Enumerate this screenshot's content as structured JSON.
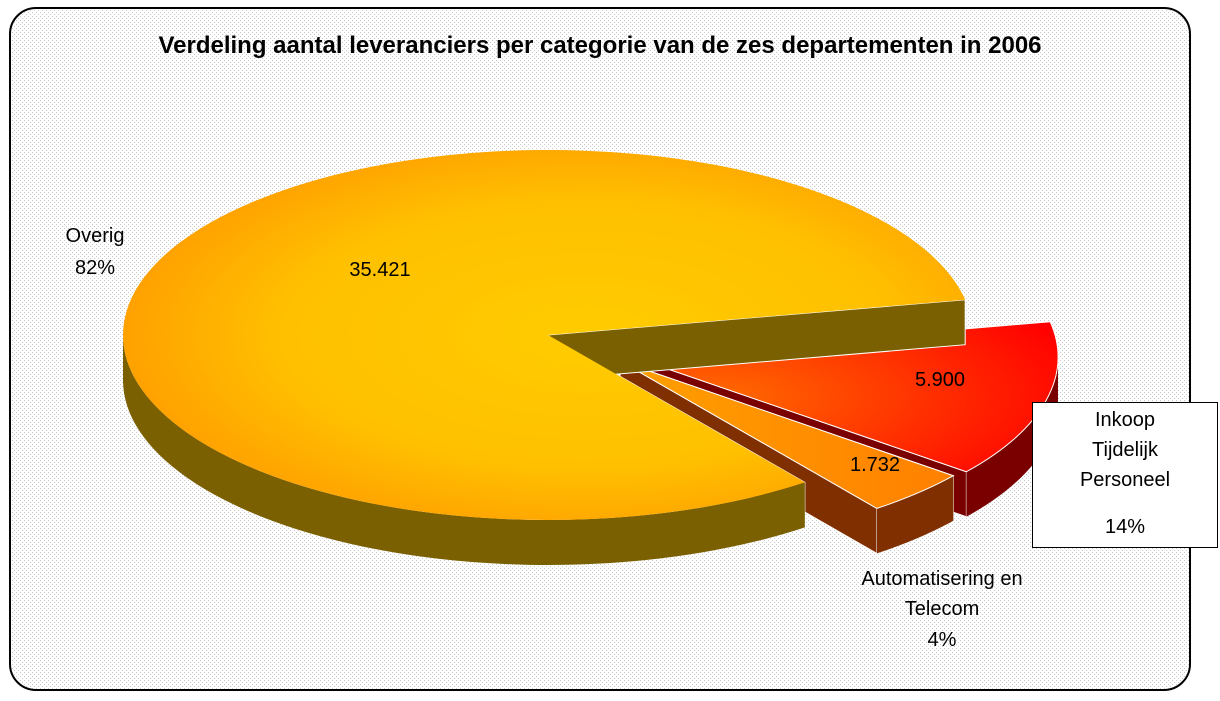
{
  "chart_data": {
    "type": "pie",
    "title": "Verdeling aantal leveranciers per categorie van de zes departementen in 2006",
    "categories": [
      "Inkoop Tijdelijk Personeel",
      "Automatisering en Telecom",
      "Overig"
    ],
    "values": [
      5900,
      1732,
      35421
    ],
    "value_labels": [
      "5.900",
      "1.732",
      "35.421"
    ],
    "percent_labels": [
      "14%",
      "4%",
      "82%"
    ],
    "colors": [
      "#ff3300",
      "#ff9900",
      "#ffc000"
    ],
    "exploded": [
      true,
      true,
      false
    ]
  }
}
